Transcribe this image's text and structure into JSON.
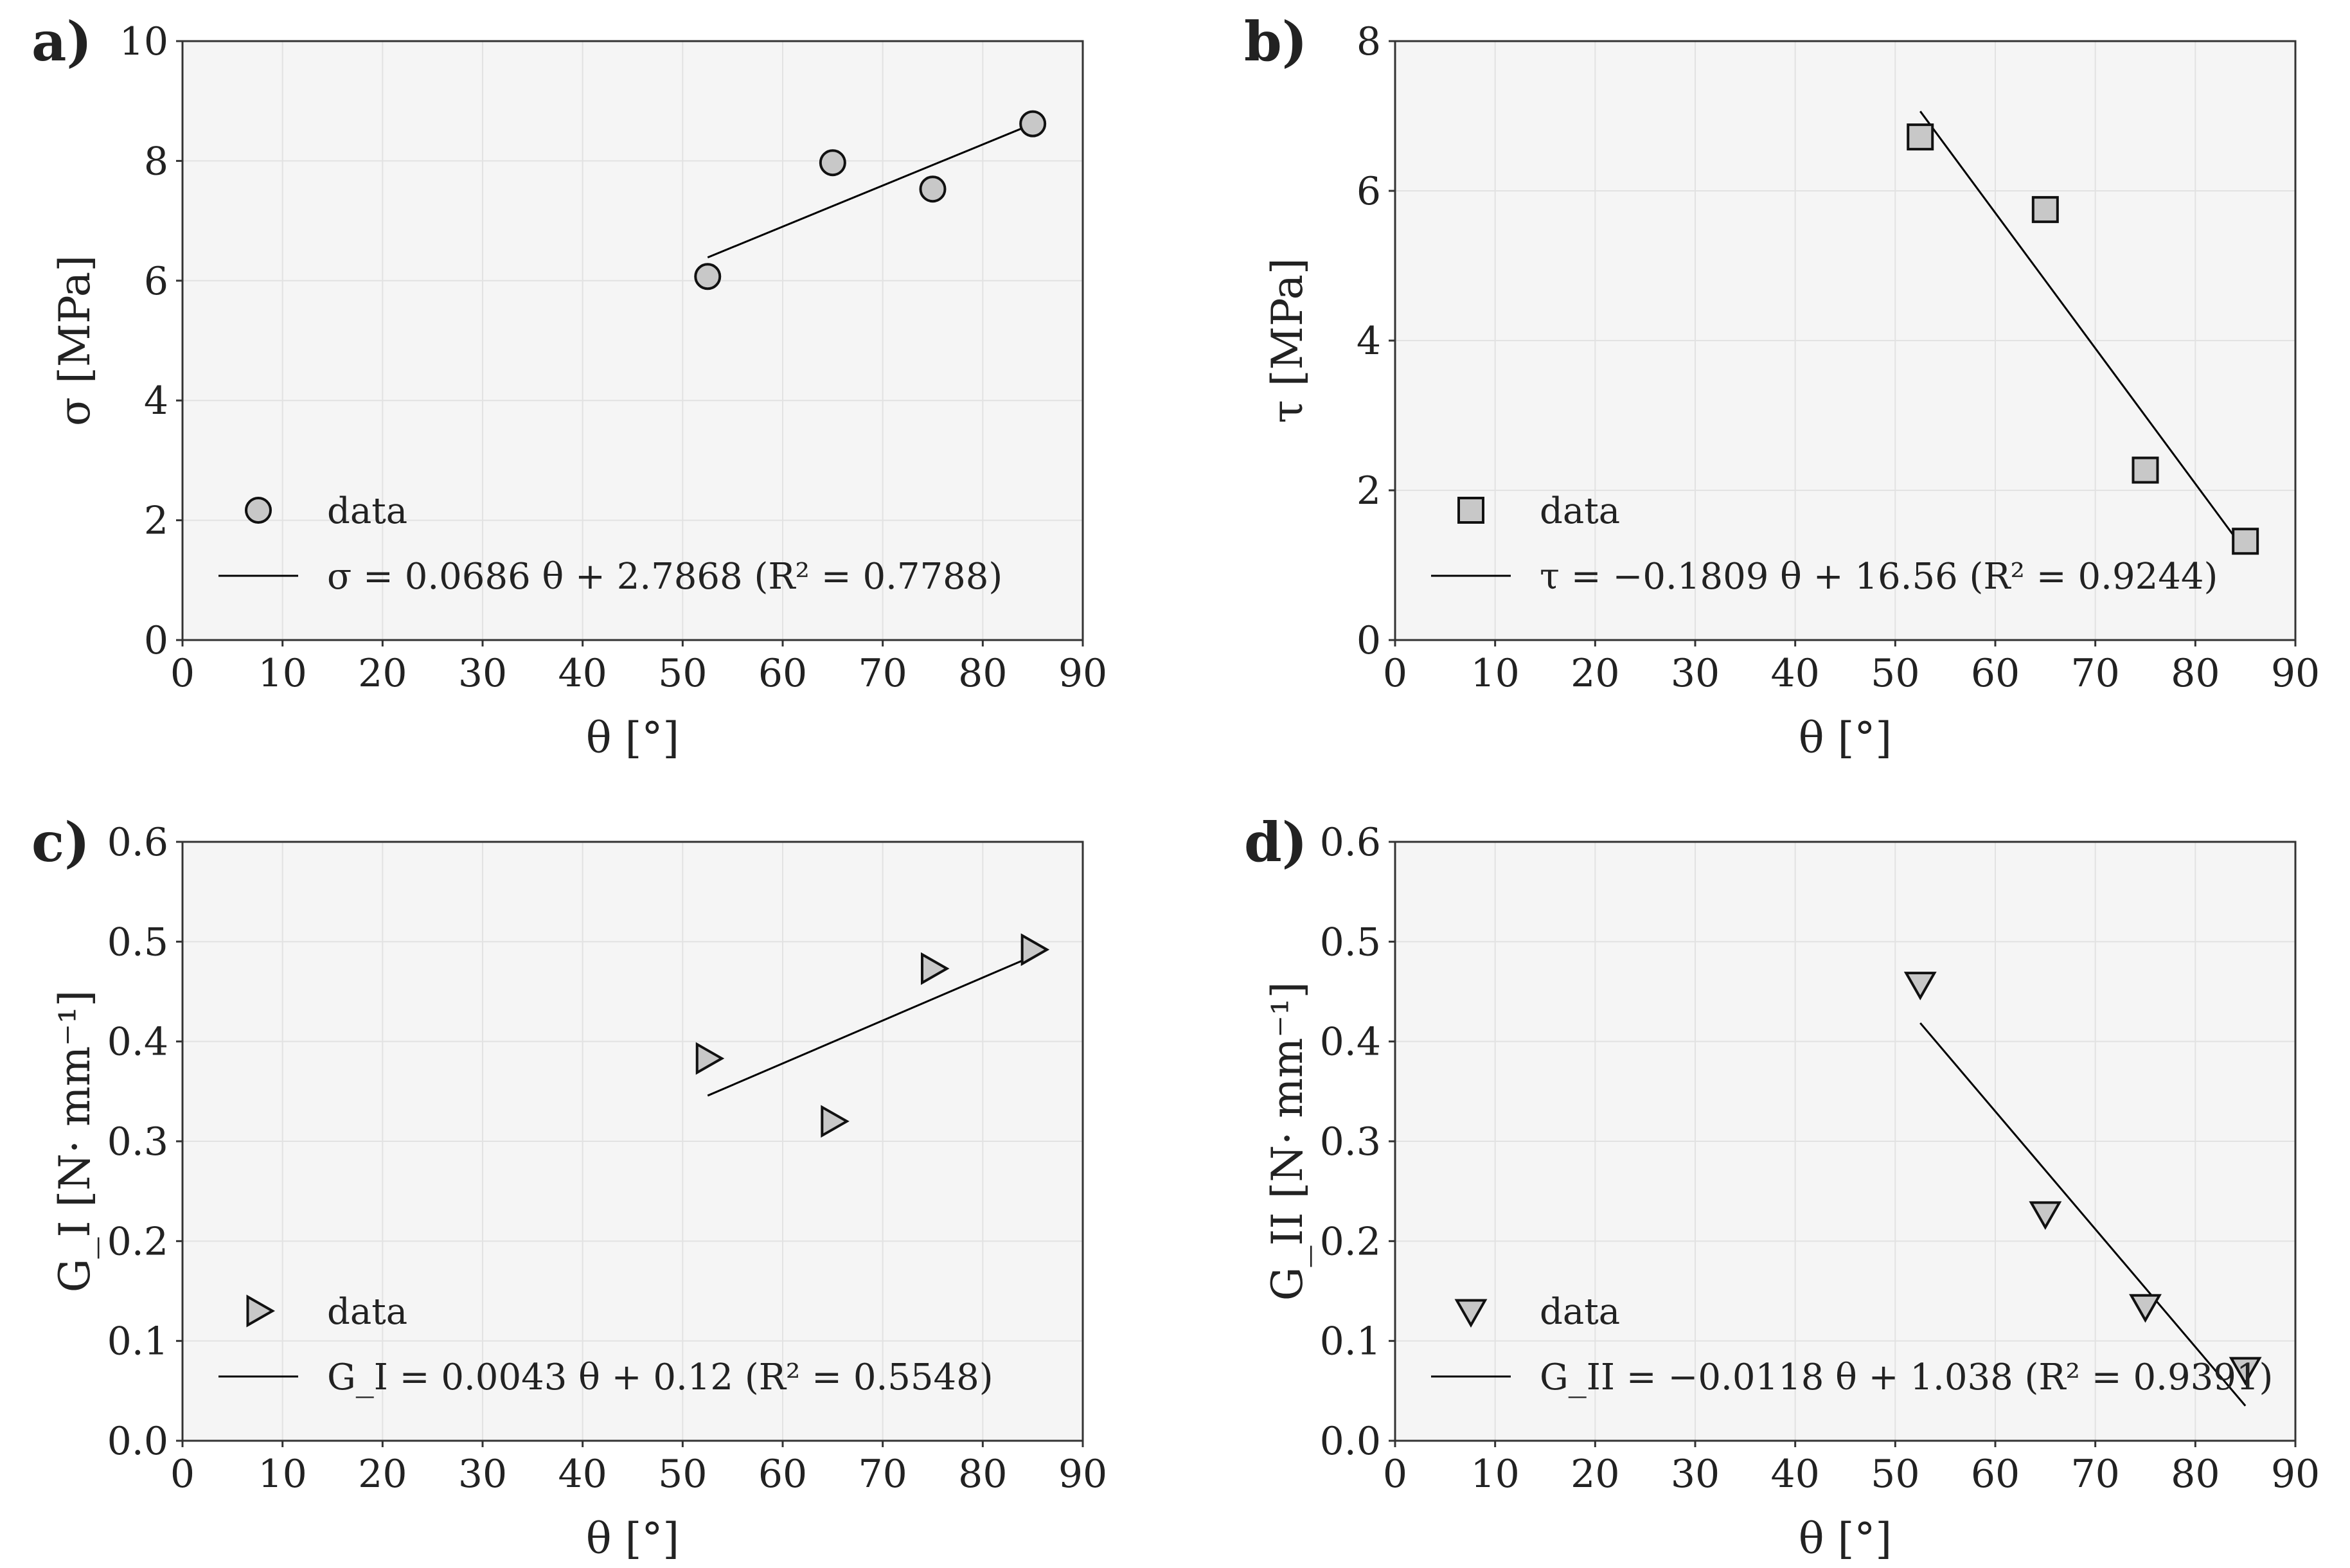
{
  "chart_data": [
    {
      "type": "scatter",
      "panel_label": "a)",
      "marker": "circle",
      "xlabel": "θ [°]",
      "ylabel": "σ [MPa]",
      "xlim": [
        0,
        90
      ],
      "ylim": [
        0,
        10
      ],
      "xticks": [
        "0",
        "10",
        "20",
        "30",
        "40",
        "50",
        "60",
        "70",
        "80",
        "90"
      ],
      "yticks": [
        "0",
        "2",
        "4",
        "6",
        "8",
        "10"
      ],
      "grid": true,
      "legend_position": "lower-left",
      "series": [
        {
          "name": "data",
          "x": [
            52.5,
            65,
            75,
            85
          ],
          "y": [
            6.07,
            7.97,
            7.53,
            8.62
          ]
        }
      ],
      "fit": {
        "label": "σ = 0.0686 θ + 2.7868 (R² = 0.7788)",
        "slope": 0.0686,
        "intercept": 2.7868,
        "x_range": [
          52.5,
          85
        ]
      }
    },
    {
      "type": "scatter",
      "panel_label": "b)",
      "marker": "square",
      "xlabel": "θ [°]",
      "ylabel": "τ [MPa]",
      "xlim": [
        0,
        90
      ],
      "ylim": [
        0,
        8
      ],
      "xticks": [
        "0",
        "10",
        "20",
        "30",
        "40",
        "50",
        "60",
        "70",
        "80",
        "90"
      ],
      "yticks": [
        "0",
        "2",
        "4",
        "6",
        "8"
      ],
      "grid": true,
      "legend_position": "lower-left",
      "series": [
        {
          "name": "data",
          "x": [
            52.5,
            65,
            75,
            85
          ],
          "y": [
            6.72,
            5.75,
            2.27,
            1.32
          ]
        }
      ],
      "fit": {
        "label": "τ = −0.1809 θ + 16.56 (R² = 0.9244)",
        "slope": -0.1809,
        "intercept": 16.56,
        "x_range": [
          52.5,
          85
        ]
      }
    },
    {
      "type": "scatter",
      "panel_label": "c)",
      "marker": "triangle-right",
      "xlabel": "θ [°]",
      "ylabel": "G_I [N· mm⁻¹]",
      "xlim": [
        0,
        90
      ],
      "ylim": [
        0,
        0.6
      ],
      "xticks": [
        "0",
        "10",
        "20",
        "30",
        "40",
        "50",
        "60",
        "70",
        "80",
        "90"
      ],
      "yticks": [
        "0.0",
        "0.1",
        "0.2",
        "0.3",
        "0.4",
        "0.5",
        "0.6"
      ],
      "grid": true,
      "legend_position": "lower-left",
      "series": [
        {
          "name": "data",
          "x": [
            52.5,
            65,
            75,
            85
          ],
          "y": [
            0.383,
            0.32,
            0.473,
            0.492
          ]
        }
      ],
      "fit": {
        "label": "G_I = 0.0043 θ + 0.12 (R² = 0.5548)",
        "slope": 0.0043,
        "intercept": 0.12,
        "x_range": [
          52.5,
          85
        ]
      }
    },
    {
      "type": "scatter",
      "panel_label": "d)",
      "marker": "triangle-down",
      "xlabel": "θ [°]",
      "ylabel": "G_II [N· mm⁻¹]",
      "xlim": [
        0,
        90
      ],
      "ylim": [
        0,
        0.6
      ],
      "xticks": [
        "0",
        "10",
        "20",
        "30",
        "40",
        "50",
        "60",
        "70",
        "80",
        "90"
      ],
      "yticks": [
        "0.0",
        "0.1",
        "0.2",
        "0.3",
        "0.4",
        "0.5",
        "0.6"
      ],
      "grid": true,
      "legend_position": "lower-left",
      "series": [
        {
          "name": "data",
          "x": [
            52.5,
            65,
            75,
            85
          ],
          "y": [
            0.458,
            0.228,
            0.135,
            0.072
          ]
        }
      ],
      "fit": {
        "label": "G_II = −0.0118 θ + 1.038 (R² = 0.9391)",
        "slope": -0.0118,
        "intercept": 1.038,
        "x_range": [
          52.5,
          85
        ]
      }
    }
  ]
}
